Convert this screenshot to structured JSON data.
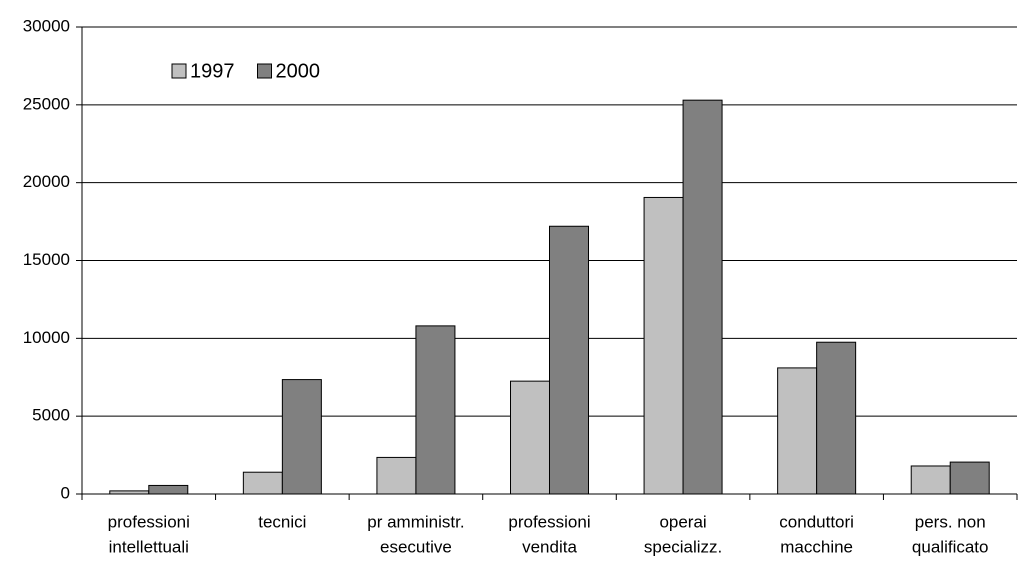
{
  "chart_data": {
    "type": "bar",
    "categories": [
      [
        "professioni",
        "intellettuali"
      ],
      [
        "tecnici"
      ],
      [
        "pr amministr.",
        "esecutive"
      ],
      [
        "professioni",
        "vendita"
      ],
      [
        "operai",
        "specializz."
      ],
      [
        "conduttori",
        "macchine"
      ],
      [
        "pers. non",
        "qualificato"
      ]
    ],
    "series": [
      {
        "name": "1997",
        "color": "#c0c0c0",
        "values": [
          200,
          1400,
          2350,
          7250,
          19050,
          8100,
          1800
        ]
      },
      {
        "name": "2000",
        "color": "#808080",
        "values": [
          550,
          7350,
          10800,
          17200,
          25300,
          9750,
          2050
        ]
      }
    ],
    "ylim": [
      0,
      30000
    ],
    "yticks": [
      0,
      5000,
      10000,
      15000,
      20000,
      25000,
      30000
    ],
    "grid": true,
    "legend": "top-left"
  }
}
